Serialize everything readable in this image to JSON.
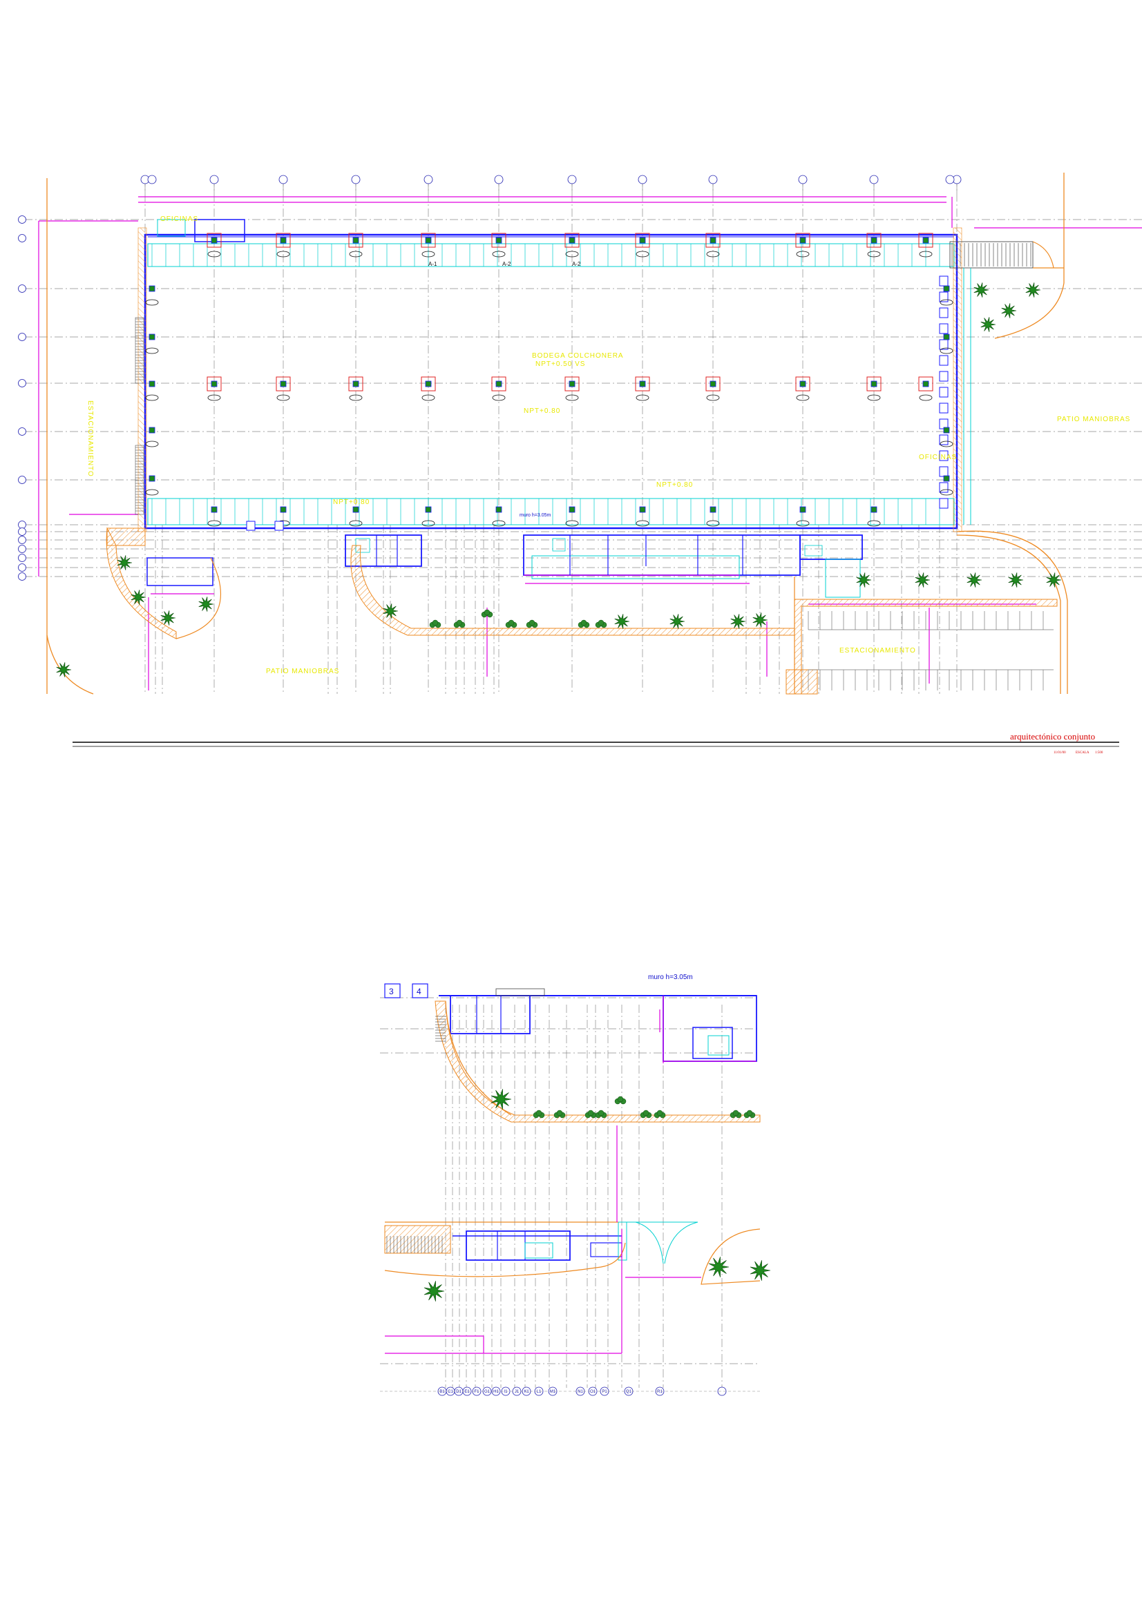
{
  "sheet": {
    "title": "arquitectónico conjunto",
    "subtitle_left": "11/01/00",
    "subtitle_mid": "ESCALA",
    "subtitle_right": "1:500"
  },
  "upper_plan": {
    "main_hall_label": "BODEGA COLCHONERA",
    "main_hall_sublabel": "NPT+0.50 VS",
    "level_label_1": "NPT+0.80",
    "level_label_2": "NPT+0.80",
    "wall_note": "muro h=3.05m",
    "left_side_label": "ESTACIONAMIENTO",
    "right_side_label": "PATIO MANIOBRAS",
    "bottom_left_label": "PATIO MANIOBRAS",
    "bottom_right_label": "ESTACIONAMIENTO",
    "upper_left_office_label": "OFICINAS",
    "right_dock_label": "OFICINAS",
    "mid_office_label": "NPT+0.80",
    "column_tag_a": "A-1",
    "column_tag_b": "A-2",
    "column_tag_c": "A-2"
  },
  "detail_plan": {
    "wall_note": "muro h=3.05m",
    "box_3": "3",
    "box_4": "4",
    "grid_axes": [
      "B1",
      "C1",
      "D1",
      "E1",
      "F1",
      "G1",
      "H1",
      "I1",
      "J1",
      "K1",
      "L1",
      "M1",
      "N1",
      "O1",
      "P1",
      "Q1",
      "R1"
    ]
  },
  "colors": {
    "wall_blue": "#1a1aff",
    "grid_gray": "#8a8a8a",
    "cyan": "#00d0d0",
    "magenta": "#e000e0",
    "orange": "#ee8a22",
    "red": "#e02020",
    "yellow_text": "#e8e800",
    "tree_green": "#1f8a1f"
  }
}
